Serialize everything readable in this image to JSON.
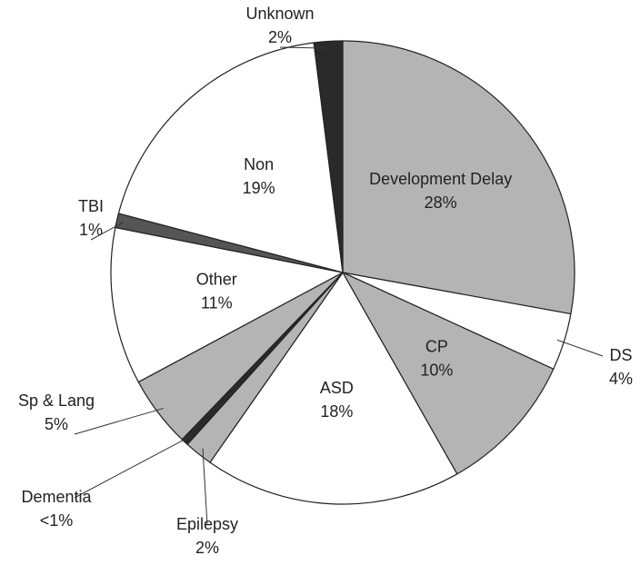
{
  "chart_data": {
    "type": "pie",
    "categories": [
      "Development Delay",
      "DS",
      "CP",
      "ASD",
      "Epilepsy",
      "Dementia",
      "Sp & Lang",
      "Other",
      "TBI",
      "Non",
      "Unknown"
    ],
    "values": [
      28,
      4,
      10,
      18,
      2,
      0.5,
      5,
      11,
      1,
      19,
      2
    ],
    "value_labels": [
      "28%",
      "4%",
      "10%",
      "18%",
      "2%",
      "<1%",
      "5%",
      "11%",
      "1%",
      "19%",
      "2%"
    ],
    "colors": [
      "#b4b4b4",
      "#ffffff",
      "#b4b4b4",
      "#ffffff",
      "#b4b4b4",
      "#2a2a2a",
      "#b4b4b4",
      "#ffffff",
      "#555555",
      "#ffffff",
      "#2a2a2a"
    ]
  }
}
